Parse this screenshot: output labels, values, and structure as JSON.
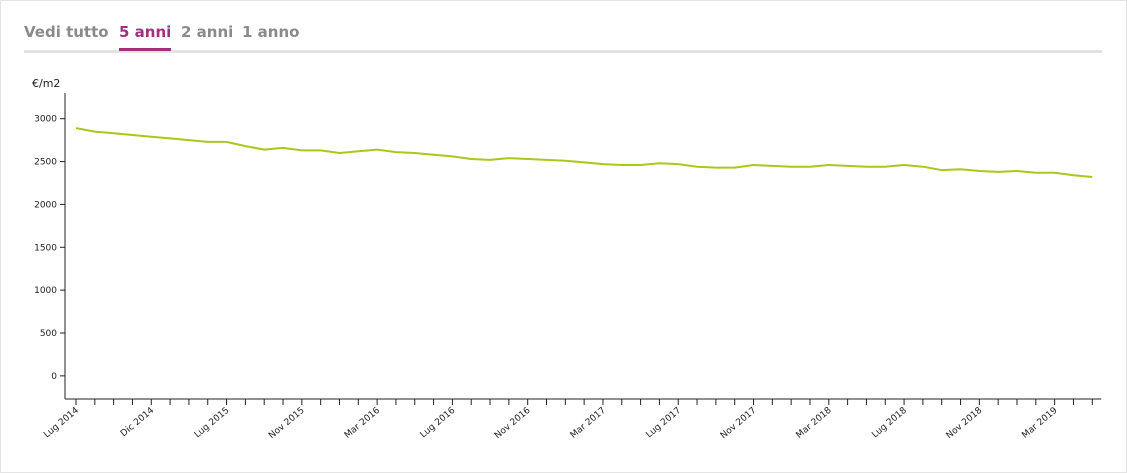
{
  "tabs": {
    "items": [
      "Vedi tutto",
      "5 anni",
      "2 anni",
      "1 anno"
    ],
    "active": 1
  },
  "chart_data": {
    "type": "line",
    "y_label": "€/m2",
    "categories": [
      "Lug 2014",
      null,
      null,
      null,
      "Dic 2014",
      null,
      null,
      null,
      "Lug 2015",
      null,
      null,
      null,
      "Nov 2015",
      null,
      null,
      null,
      "Mar 2016",
      null,
      null,
      null,
      "Lug 2016",
      null,
      null,
      null,
      "Nov 2016",
      null,
      null,
      null,
      "Mar 2017",
      null,
      null,
      null,
      "Lug 2017",
      null,
      null,
      null,
      "Nov 2017",
      null,
      null,
      null,
      "Mar 2018",
      null,
      null,
      null,
      "Lug 2018",
      null,
      null,
      null,
      "Nov 2018",
      null,
      null,
      null,
      "Mar 2019",
      null,
      null
    ],
    "series": [
      {
        "name": "€/m2",
        "color": "#a8c81c",
        "values": [
          2890,
          2850,
          2830,
          2810,
          2790,
          2770,
          2750,
          2730,
          2730,
          2680,
          2640,
          2660,
          2630,
          2630,
          2600,
          2620,
          2640,
          2610,
          2600,
          2580,
          2560,
          2530,
          2520,
          2540,
          2530,
          2520,
          2510,
          2490,
          2470,
          2460,
          2460,
          2480,
          2470,
          2440,
          2430,
          2430,
          2460,
          2450,
          2440,
          2440,
          2460,
          2450,
          2440,
          2440,
          2460,
          2440,
          2400,
          2410,
          2390,
          2380,
          2390,
          2370,
          2370,
          2340,
          2320
        ]
      }
    ],
    "ylim": [
      -270,
      3300
    ],
    "yticks": [
      0,
      500,
      1000,
      1500,
      2000,
      2500,
      3000
    ]
  }
}
